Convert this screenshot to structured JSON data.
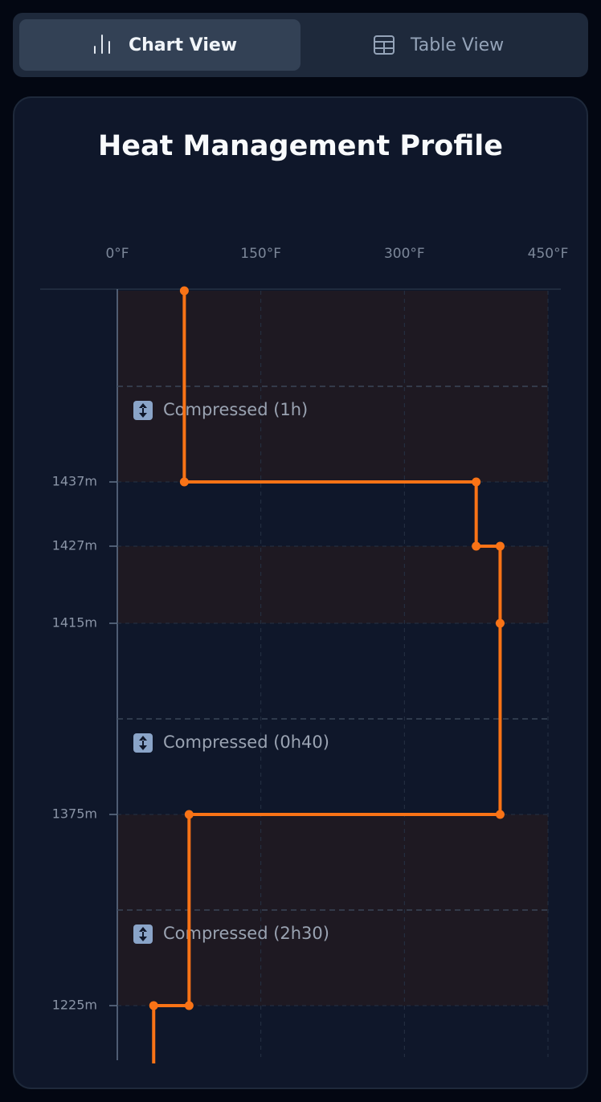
{
  "tabs": [
    "Chart View",
    "Table View"
  ],
  "chart_data": {
    "type": "line",
    "title": "Heat Management Profile",
    "xlim": [
      0,
      450
    ],
    "xticks": [
      {
        "value": 0,
        "label": "0°F"
      },
      {
        "value": 150,
        "label": "150°F"
      },
      {
        "value": 300,
        "label": "300°F"
      },
      {
        "value": 450,
        "label": "450°F"
      }
    ],
    "ylim": [
      1497,
      1216
    ],
    "yticks": [
      {
        "value": 1437,
        "label": "1437m"
      },
      {
        "value": 1427,
        "label": "1427m"
      },
      {
        "value": 1415,
        "label": "1415m"
      },
      {
        "value": 1375,
        "label": "1375m"
      },
      {
        "value": 1225,
        "label": "1225m"
      }
    ],
    "grid": true,
    "breaks": [
      {
        "from": 1497,
        "to": 1437,
        "label": "Compressed (1h)"
      },
      {
        "from": 1415,
        "to": 1375,
        "label": "Compressed (0h40)"
      },
      {
        "from": 1375,
        "to": 1225,
        "label": "Compressed (2h30)"
      }
    ],
    "bands": [
      {
        "from": 1497,
        "to": 1437
      },
      {
        "from": 1427,
        "to": 1415
      },
      {
        "from": 1375,
        "to": 1225
      }
    ],
    "band_color": "#1e1922",
    "series": [
      {
        "color": "#f97316",
        "x": [
          70,
          70,
          375,
          375,
          400,
          400,
          400,
          75,
          75,
          38,
          38
        ],
        "y": [
          1497,
          1437,
          1437,
          1427,
          1427,
          1415,
          1375,
          1375,
          1225,
          1225,
          1216
        ]
      }
    ]
  }
}
